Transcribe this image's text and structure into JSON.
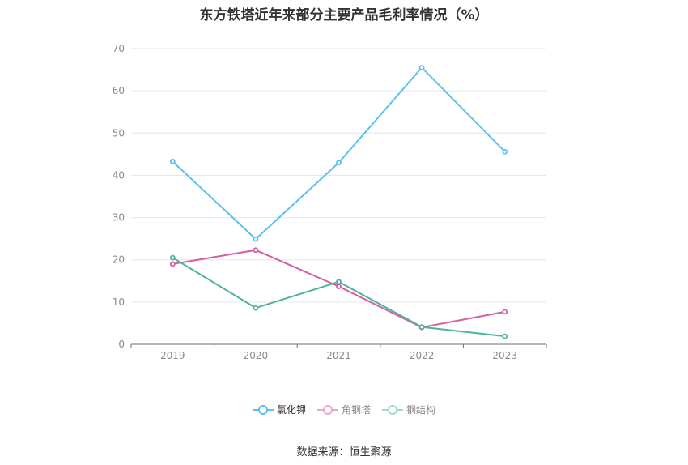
{
  "chart_data": {
    "type": "line",
    "title": "东方铁塔近年来部分主要产品毛利率情况（%）",
    "categories": [
      "2019",
      "2020",
      "2021",
      "2022",
      "2023"
    ],
    "ylim": [
      0,
      70
    ],
    "yticks": [
      "0",
      "10",
      "20",
      "30",
      "40",
      "50",
      "60",
      "70"
    ],
    "grid": true,
    "legend_position": "bottom-center",
    "series": [
      {
        "name": "氯化钾",
        "values": [
          43.3,
          24.9,
          43.0,
          65.5,
          45.6
        ],
        "color": "#5bc0f0"
      },
      {
        "name": "角钢塔",
        "values": [
          19.0,
          22.3,
          13.7,
          4.0,
          7.7
        ],
        "color": "#d35fa0"
      },
      {
        "name": "钢结构",
        "values": [
          20.5,
          8.6,
          14.8,
          4.1,
          1.9
        ],
        "color": "#4fb3a0"
      }
    ]
  },
  "source": "数据来源：恒生聚源"
}
